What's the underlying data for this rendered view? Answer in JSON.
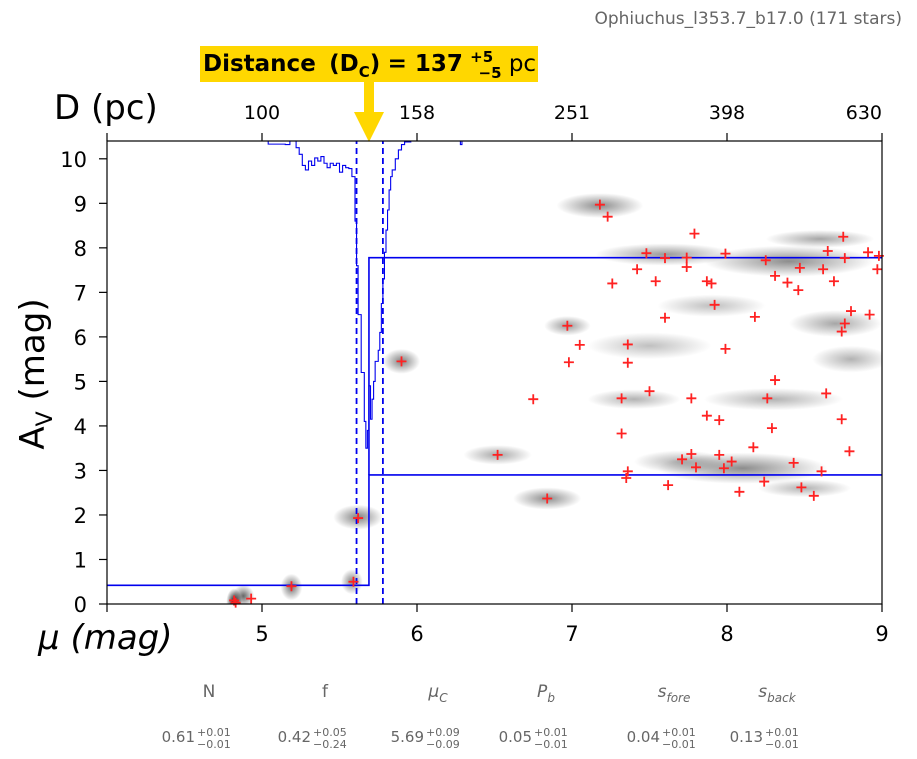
{
  "subtitle": "Ophiuchus_l353.7_b17.0 (171 stars)",
  "colors": {
    "accent": "#0000ee",
    "stars": "#ff2222",
    "annotation_bg": "#ffd700"
  },
  "annotation": {
    "label": "Distance",
    "subscript_label": "(D",
    "subscript": "C",
    "close": ")",
    "equals": " = ",
    "value": "137",
    "err_up": "+5",
    "err_down": "−5",
    "unit": " pc"
  },
  "chart_data": {
    "type": "scatter",
    "title": "",
    "xlabel": "μ (mag)",
    "ylabel": "A_V (mag)",
    "top_xlabel": "D (pc)",
    "xlim": [
      4.0,
      9.0
    ],
    "ylim": [
      0,
      10.4
    ],
    "xticks": [
      5,
      6,
      7,
      8,
      9
    ],
    "yticks": [
      0,
      1,
      2,
      3,
      4,
      5,
      6,
      7,
      8,
      9,
      10
    ],
    "top_ticks": [
      {
        "mu": 5.0,
        "label": "100"
      },
      {
        "mu": 6.0,
        "label": "158"
      },
      {
        "mu": 7.0,
        "label": "251"
      },
      {
        "mu": 8.0,
        "label": "398"
      },
      {
        "mu": 9.0,
        "label": "630"
      }
    ],
    "grid": false,
    "cloud_distance_modulus": 5.69,
    "cloud_modulus_bounds": [
      5.61,
      5.78
    ],
    "foreground_extinction": 0.42,
    "background_extinction_range": [
      2.9,
      7.78
    ],
    "stars": [
      [
        4.82,
        0.08
      ],
      [
        4.83,
        0.03
      ],
      [
        4.93,
        0.12
      ],
      [
        5.19,
        0.4
      ],
      [
        5.59,
        0.5
      ],
      [
        5.62,
        1.93
      ],
      [
        5.9,
        5.45
      ],
      [
        6.52,
        3.35
      ],
      [
        6.75,
        4.6
      ],
      [
        6.84,
        2.37
      ],
      [
        6.97,
        6.25
      ],
      [
        6.98,
        5.43
      ],
      [
        7.05,
        5.82
      ],
      [
        7.18,
        8.97
      ],
      [
        7.23,
        8.7
      ],
      [
        7.26,
        7.2
      ],
      [
        7.32,
        4.62
      ],
      [
        7.32,
        3.83
      ],
      [
        7.35,
        2.83
      ],
      [
        7.36,
        2.98
      ],
      [
        7.36,
        5.42
      ],
      [
        7.36,
        5.83
      ],
      [
        7.42,
        7.52
      ],
      [
        7.48,
        7.88
      ],
      [
        7.5,
        4.78
      ],
      [
        7.54,
        7.25
      ],
      [
        7.6,
        6.43
      ],
      [
        7.6,
        7.77
      ],
      [
        7.62,
        2.67
      ],
      [
        7.71,
        3.25
      ],
      [
        7.74,
        7.57
      ],
      [
        7.74,
        7.78
      ],
      [
        7.77,
        3.37
      ],
      [
        7.77,
        4.62
      ],
      [
        7.79,
        8.32
      ],
      [
        7.8,
        3.07
      ],
      [
        7.87,
        4.23
      ],
      [
        7.87,
        7.25
      ],
      [
        7.9,
        7.2
      ],
      [
        7.92,
        6.72
      ],
      [
        7.95,
        3.35
      ],
      [
        7.95,
        4.13
      ],
      [
        7.98,
        3.05
      ],
      [
        7.99,
        7.87
      ],
      [
        7.99,
        5.73
      ],
      [
        8.03,
        3.2
      ],
      [
        8.08,
        2.52
      ],
      [
        8.17,
        3.52
      ],
      [
        8.18,
        6.45
      ],
      [
        8.24,
        2.75
      ],
      [
        8.25,
        7.72
      ],
      [
        8.26,
        4.62
      ],
      [
        8.29,
        3.95
      ],
      [
        8.31,
        5.03
      ],
      [
        8.31,
        7.37
      ],
      [
        8.39,
        7.22
      ],
      [
        8.43,
        3.17
      ],
      [
        8.46,
        7.05
      ],
      [
        8.47,
        7.55
      ],
      [
        8.48,
        2.62
      ],
      [
        8.56,
        2.43
      ],
      [
        8.61,
        2.98
      ],
      [
        8.62,
        7.52
      ],
      [
        8.64,
        4.73
      ],
      [
        8.65,
        7.93
      ],
      [
        8.69,
        7.25
      ],
      [
        8.74,
        4.15
      ],
      [
        8.74,
        6.12
      ],
      [
        8.75,
        8.25
      ],
      [
        8.76,
        6.3
      ],
      [
        8.76,
        7.77
      ],
      [
        8.79,
        3.43
      ],
      [
        8.8,
        6.58
      ],
      [
        8.91,
        7.9
      ],
      [
        8.92,
        6.5
      ],
      [
        8.97,
        7.52
      ],
      [
        8.98,
        7.82
      ]
    ],
    "probability_blobs": [
      [
        4.82,
        0.05,
        0.05,
        0.3,
        0.95
      ],
      [
        4.88,
        0.18,
        0.07,
        0.25,
        0.6
      ],
      [
        5.19,
        0.38,
        0.07,
        0.3,
        0.55
      ],
      [
        5.58,
        0.5,
        0.07,
        0.28,
        0.5
      ],
      [
        5.62,
        1.95,
        0.16,
        0.28,
        0.5
      ],
      [
        5.9,
        5.45,
        0.12,
        0.28,
        0.5
      ],
      [
        6.52,
        3.35,
        0.22,
        0.22,
        0.35
      ],
      [
        6.84,
        2.37,
        0.22,
        0.25,
        0.45
      ],
      [
        6.97,
        6.25,
        0.15,
        0.22,
        0.4
      ],
      [
        7.18,
        8.95,
        0.28,
        0.28,
        0.45
      ],
      [
        7.4,
        4.6,
        0.3,
        0.22,
        0.3
      ],
      [
        7.6,
        7.85,
        0.45,
        0.25,
        0.4
      ],
      [
        8.4,
        7.7,
        0.55,
        0.35,
        0.45
      ],
      [
        8.1,
        3.05,
        0.55,
        0.35,
        0.45
      ],
      [
        7.7,
        3.2,
        0.3,
        0.25,
        0.3
      ],
      [
        8.3,
        4.6,
        0.45,
        0.25,
        0.3
      ],
      [
        8.7,
        6.3,
        0.3,
        0.3,
        0.35
      ],
      [
        8.5,
        2.6,
        0.3,
        0.2,
        0.3
      ],
      [
        7.5,
        5.8,
        0.4,
        0.3,
        0.25
      ],
      [
        8.8,
        5.5,
        0.25,
        0.3,
        0.3
      ],
      [
        7.9,
        6.7,
        0.35,
        0.25,
        0.25
      ],
      [
        8.6,
        8.2,
        0.35,
        0.2,
        0.35
      ]
    ],
    "cdf_steps": [
      [
        4.98,
        10.4
      ],
      [
        5.04,
        10.33
      ],
      [
        5.15,
        10.32
      ],
      [
        5.18,
        10.4
      ],
      [
        5.22,
        10.25
      ],
      [
        5.24,
        10.1
      ],
      [
        5.26,
        9.85
      ],
      [
        5.28,
        9.75
      ],
      [
        5.3,
        9.95
      ],
      [
        5.32,
        9.85
      ],
      [
        5.34,
        10.02
      ],
      [
        5.36,
        9.95
      ],
      [
        5.38,
        10.05
      ],
      [
        5.4,
        9.9
      ],
      [
        5.42,
        9.8
      ],
      [
        5.44,
        9.9
      ],
      [
        5.46,
        9.85
      ],
      [
        5.48,
        9.9
      ],
      [
        5.5,
        9.7
      ],
      [
        5.52,
        9.85
      ],
      [
        5.54,
        9.8
      ],
      [
        5.56,
        9.78
      ],
      [
        5.58,
        9.6
      ],
      [
        5.6,
        8.6
      ],
      [
        5.61,
        7.6
      ],
      [
        5.62,
        6.5
      ],
      [
        5.64,
        5.2
      ],
      [
        5.66,
        4.1
      ],
      [
        5.67,
        3.5
      ],
      [
        5.68,
        3.9
      ],
      [
        5.69,
        4.9
      ],
      [
        5.7,
        4.15
      ],
      [
        5.71,
        4.6
      ],
      [
        5.72,
        5.0
      ],
      [
        5.73,
        5.45
      ],
      [
        5.75,
        5.7
      ],
      [
        5.76,
        6.1
      ],
      [
        5.77,
        6.75
      ],
      [
        5.78,
        7.3
      ],
      [
        5.79,
        7.9
      ],
      [
        5.8,
        8.4
      ],
      [
        5.81,
        8.85
      ],
      [
        5.82,
        9.3
      ],
      [
        5.83,
        9.6
      ],
      [
        5.84,
        9.75
      ],
      [
        5.86,
        10.0
      ],
      [
        5.88,
        10.2
      ],
      [
        5.9,
        10.32
      ],
      [
        5.92,
        10.38
      ],
      [
        5.96,
        10.4
      ],
      [
        6.26,
        10.4
      ],
      [
        6.28,
        10.32
      ],
      [
        6.29,
        10.4
      ],
      [
        9.0,
        10.4
      ]
    ]
  },
  "parameters": [
    {
      "name": "N",
      "value": "0.61",
      "err_up": "+0.01",
      "err_down": "−0.01"
    },
    {
      "name": "f",
      "value": "0.42",
      "err_up": "+0.05",
      "err_down": "−0.24"
    },
    {
      "name": "μ",
      "sub": "C",
      "value": "5.69",
      "err_up": "+0.09",
      "err_down": "−0.09"
    },
    {
      "name": "P",
      "sub": "b",
      "value": "0.05",
      "err_up": "+0.01",
      "err_down": "−0.01"
    },
    {
      "name": "s",
      "sub": "fore",
      "value": "0.04",
      "err_up": "+0.01",
      "err_down": "−0.01"
    },
    {
      "name": "s",
      "sub": "back",
      "value": "0.13",
      "err_up": "+0.01",
      "err_down": "−0.01"
    }
  ]
}
